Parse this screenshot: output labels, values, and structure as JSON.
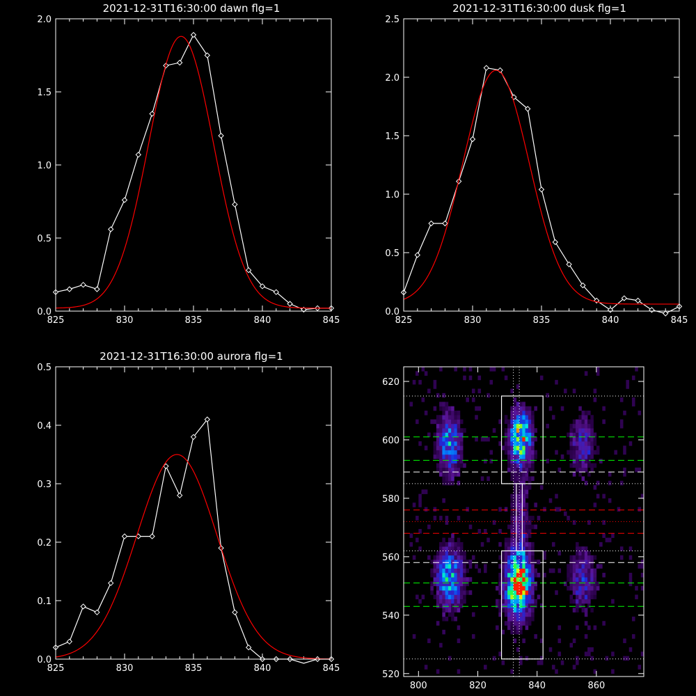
{
  "chart_data": [
    {
      "type": "line",
      "title": "2021-12-31T16:30:00 dawn flg=1",
      "xlim": [
        825,
        845
      ],
      "ylim": [
        0,
        2.0
      ],
      "xticks": [
        "825",
        "830",
        "835",
        "840",
        "845"
      ],
      "yticks": [
        "0.0",
        "0.5",
        "1.0",
        "1.5",
        "2.0"
      ],
      "series": [
        {
          "color": "#ffffff",
          "marker": "diamond",
          "x": [
            825,
            826,
            827,
            828,
            829,
            830,
            831,
            832,
            833,
            834,
            835,
            836,
            837,
            838,
            839,
            840,
            841,
            842,
            843,
            844,
            845
          ],
          "y": [
            0.13,
            0.15,
            0.18,
            0.15,
            0.56,
            0.76,
            1.07,
            1.35,
            1.68,
            1.7,
            1.89,
            1.75,
            1.2,
            0.73,
            0.28,
            0.17,
            0.13,
            0.05,
            0.01,
            0.02,
            0.02
          ]
        },
        {
          "color": "#ff0000",
          "fit": {
            "kind": "gaussian",
            "amplitude": 1.86,
            "center": 834.1,
            "sigma": 2.35,
            "offset": 0.02
          },
          "x": [],
          "y": []
        }
      ]
    },
    {
      "type": "line",
      "title": "2021-12-31T16:30:00 dusk flg=1",
      "xlim": [
        825,
        845
      ],
      "ylim": [
        0,
        2.5
      ],
      "xticks": [
        "825",
        "830",
        "835",
        "840",
        "845"
      ],
      "yticks": [
        "0.0",
        "0.5",
        "1.0",
        "1.5",
        "2.0",
        "2.5"
      ],
      "series": [
        {
          "color": "#ffffff",
          "marker": "diamond",
          "x": [
            825,
            826,
            827,
            828,
            829,
            830,
            831,
            832,
            833,
            834,
            835,
            836,
            837,
            838,
            839,
            840,
            841,
            842,
            843,
            844,
            845
          ],
          "y": [
            0.16,
            0.48,
            0.75,
            0.75,
            1.11,
            1.47,
            2.08,
            2.06,
            1.83,
            1.73,
            1.04,
            0.59,
            0.4,
            0.22,
            0.09,
            0.01,
            0.11,
            0.09,
            0.01,
            -0.02,
            0.04
          ]
        },
        {
          "color": "#ff0000",
          "fit": {
            "kind": "gaussian",
            "amplitude": 2.0,
            "center": 831.7,
            "sigma": 2.4,
            "offset": 0.06
          },
          "x": [],
          "y": []
        }
      ]
    },
    {
      "type": "line",
      "title": "2021-12-31T16:30:00 aurora flg=1",
      "xlim": [
        825,
        845
      ],
      "ylim": [
        0,
        0.5
      ],
      "xticks": [
        "825",
        "830",
        "835",
        "840",
        "845"
      ],
      "yticks": [
        "0.0",
        "0.1",
        "0.2",
        "0.3",
        "0.4",
        "0.5"
      ],
      "series": [
        {
          "color": "#ffffff",
          "marker": "diamond",
          "x": [
            825,
            826,
            827,
            828,
            829,
            830,
            831,
            832,
            833,
            834,
            835,
            836,
            837,
            838,
            839,
            840,
            841,
            842,
            843,
            844,
            845
          ],
          "y": [
            0.02,
            0.03,
            0.09,
            0.08,
            0.13,
            0.21,
            0.21,
            0.21,
            0.33,
            0.28,
            0.38,
            0.41,
            0.19,
            0.08,
            0.02,
            0.0,
            0.0,
            0.0,
            -0.01,
            0.0,
            0.0
          ]
        },
        {
          "color": "#ff0000",
          "fit": {
            "kind": "gaussian",
            "amplitude": 0.35,
            "center": 833.8,
            "sigma": 2.9,
            "offset": 0.0
          },
          "x": [],
          "y": []
        }
      ]
    },
    {
      "type": "heatmap",
      "title": "",
      "xlim": [
        795,
        876
      ],
      "ylim": [
        519,
        625
      ],
      "xticks": [
        "800",
        "820",
        "840",
        "860"
      ],
      "yticks": [
        "520",
        "540",
        "560",
        "580",
        "600",
        "620"
      ],
      "blobs": [
        {
          "x": 810,
          "y": 598,
          "sx": 2.5,
          "sy": 7,
          "amp": 0.55
        },
        {
          "x": 810,
          "y": 552,
          "sx": 3,
          "sy": 7,
          "amp": 0.6
        },
        {
          "x": 834,
          "y": 600,
          "sx": 2.5,
          "sy": 6,
          "amp": 0.85
        },
        {
          "x": 833,
          "y": 550,
          "sx": 3,
          "sy": 8,
          "amp": 0.9
        },
        {
          "x": 835,
          "y": 550,
          "sx": 1.5,
          "sy": 3,
          "amp": 0.35
        },
        {
          "x": 855,
          "y": 598,
          "sx": 3,
          "sy": 7,
          "amp": 0.3
        },
        {
          "x": 855,
          "y": 552,
          "sx": 3,
          "sy": 7,
          "amp": 0.32
        },
        {
          "x": 834,
          "y": 575,
          "sx": 2.5,
          "sy": 10,
          "amp": 0.2
        }
      ],
      "boxes": [
        {
          "x0": 828,
          "x1": 842,
          "y0": 585,
          "y1": 615,
          "color": "#ffffff"
        },
        {
          "x0": 828,
          "x1": 842,
          "y0": 525,
          "y1": 562,
          "color": "#ffffff"
        },
        {
          "x0": 833,
          "x1": 835,
          "y0": 562,
          "y1": 585,
          "color": "#ffffff"
        }
      ],
      "hlines": [
        {
          "y": 615,
          "color": "#ffffff",
          "style": "dotted"
        },
        {
          "y": 601,
          "color": "#00ff00",
          "style": "dashed"
        },
        {
          "y": 593,
          "color": "#00ff00",
          "style": "dashed"
        },
        {
          "y": 589,
          "color": "#ffffff",
          "style": "dashed"
        },
        {
          "y": 585,
          "color": "#ffffff",
          "style": "dotted"
        },
        {
          "y": 576,
          "color": "#ff0000",
          "style": "dashed"
        },
        {
          "y": 572,
          "color": "#ff0000",
          "style": "dotted"
        },
        {
          "y": 568,
          "color": "#ff0000",
          "style": "dashed"
        },
        {
          "y": 562,
          "color": "#ffffff",
          "style": "dotted"
        },
        {
          "y": 558,
          "color": "#ffffff",
          "style": "dashed"
        },
        {
          "y": 551,
          "color": "#00ff00",
          "style": "dashed"
        },
        {
          "y": 543,
          "color": "#00ff00",
          "style": "dashed"
        },
        {
          "y": 525,
          "color": "#ffffff",
          "style": "dotted"
        }
      ],
      "vlines": [
        {
          "x": 832,
          "color": "#ffffff",
          "style": "dotted"
        },
        {
          "x": 834,
          "color": "#ffffff",
          "style": "dotted"
        }
      ]
    }
  ]
}
